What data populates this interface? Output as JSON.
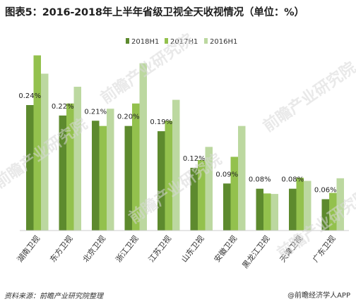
{
  "chart_data": {
    "type": "bar",
    "title": "图表5：2016-2018年上半年省级卫视全天收视情况（单位：%）",
    "categories": [
      "湖南卫视",
      "东方卫视",
      "北京卫视",
      "浙江卫视",
      "江苏卫视",
      "山东卫视",
      "安徽卫视",
      "黑龙江卫视",
      "天津卫视",
      "广东卫视"
    ],
    "series": [
      {
        "name": "2018H1",
        "color": "#5d8a2e",
        "values": [
          0.24,
          0.22,
          0.21,
          0.2,
          0.19,
          0.12,
          0.09,
          0.08,
          0.08,
          0.06
        ],
        "labels": [
          "0.24%",
          "0.22%",
          "0.21%",
          "0.20%",
          "0.19%",
          "0.12%",
          "0.09%",
          "0.08%",
          "0.08%",
          "0.06%"
        ]
      },
      {
        "name": "2017H1",
        "color": "#93c14d",
        "values": [
          0.335,
          0.243,
          0.2,
          0.243,
          0.21,
          0.135,
          0.141,
          0.071,
          0.101,
          0.072
        ]
      },
      {
        "name": "2016H1",
        "color": "#bcd8a0",
        "values": [
          0.3,
          0.275,
          0.233,
          0.32,
          0.25,
          0.16,
          0.2,
          0.07,
          0.095,
          0.1
        ]
      }
    ],
    "ylim": [
      0,
      0.36
    ],
    "legend_position": "top-center",
    "grid": false
  },
  "footer": {
    "source": "资料来源：前瞻产业研究院整理",
    "brand": "@前瞻经济学人APP"
  },
  "watermark": "前瞻产业研究院"
}
